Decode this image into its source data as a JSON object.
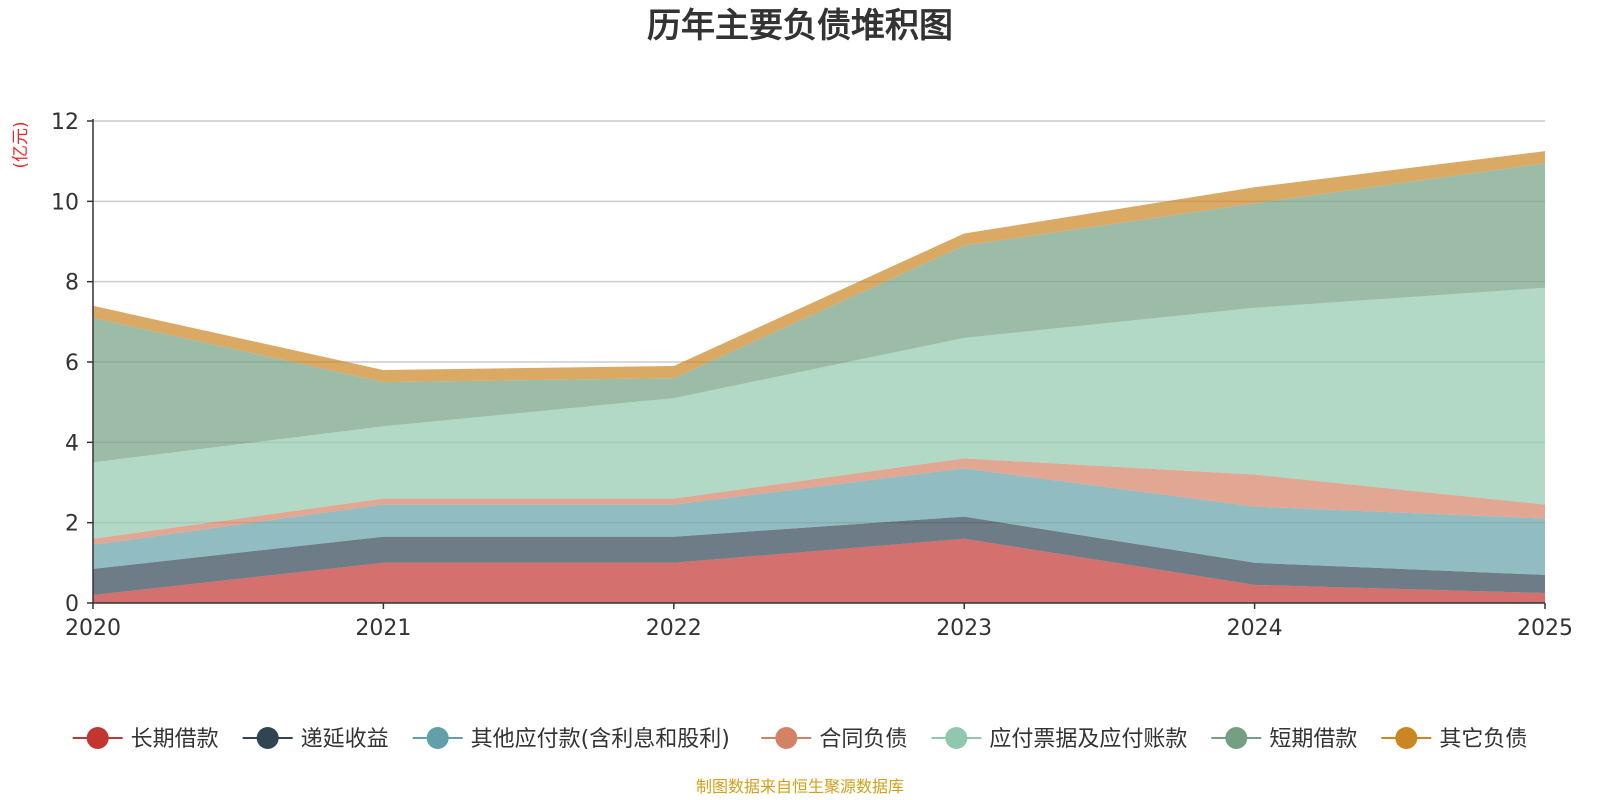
{
  "chart_data": {
    "type": "area",
    "stacked": true,
    "title": "历年主要负债堆积图",
    "unit_label": "(亿元)",
    "x": [
      "2020",
      "2021",
      "2022",
      "2023",
      "2024",
      "2025"
    ],
    "ylim": [
      0,
      12
    ],
    "yticks": [
      0,
      2,
      4,
      6,
      8,
      10,
      12
    ],
    "ytick_labels": [
      "0",
      "2",
      "4",
      "6",
      "8",
      "10",
      "12"
    ],
    "grid": true,
    "legend_position": "bottom",
    "series": [
      {
        "name": "长期借款",
        "color": "#c23531",
        "values": [
          0.2,
          1.0,
          1.0,
          1.6,
          0.45,
          0.25
        ]
      },
      {
        "name": "递延收益",
        "color": "#2f4554",
        "values": [
          0.65,
          0.65,
          0.65,
          0.55,
          0.55,
          0.45
        ]
      },
      {
        "name": "其他应付款(含利息和股利)",
        "color": "#61a0a8",
        "values": [
          0.6,
          0.8,
          0.8,
          1.2,
          1.4,
          1.4
        ]
      },
      {
        "name": "合同负债",
        "color": "#d48265",
        "values": [
          0.15,
          0.15,
          0.15,
          0.25,
          0.8,
          0.35
        ]
      },
      {
        "name": "应付票据及应付账款",
        "color": "#91c7ae",
        "values": [
          1.9,
          1.8,
          2.5,
          3.0,
          4.15,
          5.4
        ]
      },
      {
        "name": "短期借款",
        "color": "#749f83",
        "values": [
          3.6,
          1.1,
          0.5,
          2.3,
          2.6,
          3.1
        ]
      },
      {
        "name": "其它负债",
        "color": "#ca8622",
        "values": [
          0.3,
          0.3,
          0.3,
          0.3,
          0.4,
          0.3
        ]
      }
    ],
    "source_note": "制图数据来自恒生聚源数据库"
  }
}
